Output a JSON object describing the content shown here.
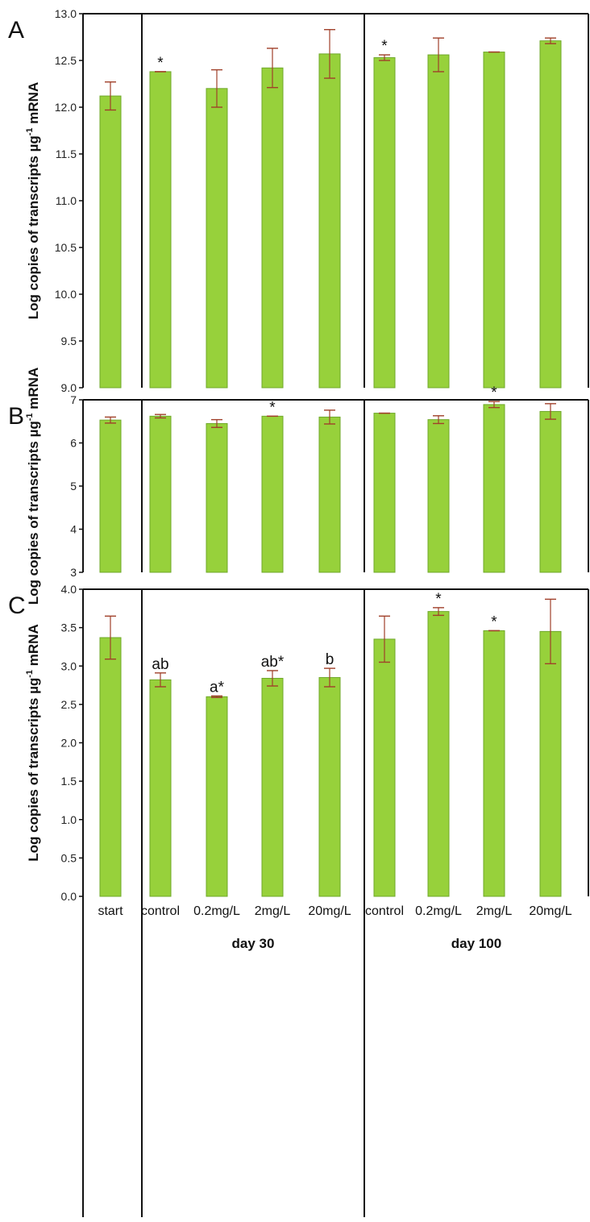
{
  "colors": {
    "bar_fill": "#97d13b",
    "bar_stroke": "#6fa82a",
    "error_bar": "#a0402a",
    "axis": "#111111"
  },
  "x_axis": {
    "categories": [
      "start",
      "control",
      "0.2mg/L",
      "2mg/L",
      "20mg/L",
      "control",
      "0.2mg/L",
      "2mg/L",
      "20mg/L"
    ],
    "groups": [
      {
        "label": "",
        "members": [
          "start"
        ]
      },
      {
        "label": "day 30",
        "members": [
          "control",
          "0.2mg/L",
          "2mg/L",
          "20mg/L"
        ]
      },
      {
        "label": "day 100",
        "members": [
          "control",
          "0.2mg/L",
          "2mg/L",
          "20mg/L"
        ]
      }
    ]
  },
  "chart_data": [
    {
      "type": "bar",
      "panel": "A",
      "ylabel": "Log copies of transcripts µg-1 mRNA",
      "ylabel_main": "Log copies of transcripts µg",
      "ylabel_sup": "-1",
      "ylabel_tail": " mRNA",
      "ylim": [
        9.0,
        13.0
      ],
      "yticks": [
        9.0,
        9.5,
        10.0,
        10.5,
        11.0,
        11.5,
        12.0,
        12.5,
        13.0
      ],
      "ytick_labels": [
        "9.0",
        "9.5",
        "10.0",
        "10.5",
        "11.0",
        "11.5",
        "12.0",
        "12.5",
        "13.0"
      ],
      "grid": false,
      "values": [
        12.12,
        12.38,
        12.2,
        12.42,
        12.57,
        12.53,
        12.56,
        12.59,
        12.71
      ],
      "errors": [
        0.15,
        0.0,
        0.2,
        0.21,
        0.26,
        0.03,
        0.18,
        0.0,
        0.03
      ],
      "annotations": [
        "",
        "*",
        "",
        "",
        "",
        "*",
        "",
        "",
        ""
      ]
    },
    {
      "type": "bar",
      "panel": "B",
      "ylabel": "Log copies of transcripts µg-1 mRNA",
      "ylabel_main": "Log copies of transcripts µg",
      "ylabel_sup": "-1",
      "ylabel_tail": " mRNA",
      "ylim": [
        3,
        7
      ],
      "yticks": [
        3,
        4,
        5,
        6,
        7
      ],
      "ytick_labels": [
        "3",
        "4",
        "5",
        "6",
        "7"
      ],
      "grid": false,
      "values": [
        6.53,
        6.62,
        6.45,
        6.62,
        6.6,
        6.69,
        6.54,
        6.89,
        6.73
      ],
      "errors": [
        0.07,
        0.04,
        0.09,
        0.0,
        0.16,
        0.0,
        0.09,
        0.07,
        0.18
      ],
      "annotations": [
        "",
        "",
        "",
        "*",
        "",
        "",
        "",
        "*",
        ""
      ]
    },
    {
      "type": "bar",
      "panel": "C",
      "ylabel": "Log copies of transcripts µg-1 mRNA",
      "ylabel_main": "Log copies of transcripts µg",
      "ylabel_sup": "-1",
      "ylabel_tail": " mRNA",
      "ylim": [
        0.0,
        4.0
      ],
      "yticks": [
        0.0,
        0.5,
        1.0,
        1.5,
        2.0,
        2.5,
        3.0,
        3.5,
        4.0
      ],
      "ytick_labels": [
        "0.0",
        "0.5",
        "1.0",
        "1.5",
        "2.0",
        "2.5",
        "3.0",
        "3.5",
        "4.0"
      ],
      "grid": false,
      "values": [
        3.37,
        2.82,
        2.6,
        2.84,
        2.85,
        3.35,
        3.71,
        3.46,
        3.45
      ],
      "errors": [
        0.28,
        0.09,
        0.01,
        0.1,
        0.12,
        0.3,
        0.05,
        0.0,
        0.42
      ],
      "annotations": [
        "",
        "ab",
        "a*",
        "ab*",
        "b",
        "",
        "*",
        "*",
        ""
      ]
    }
  ]
}
